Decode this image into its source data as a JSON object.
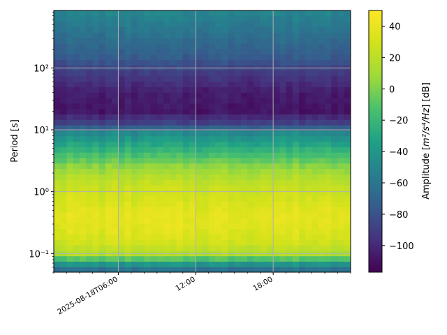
{
  "chart_data": {
    "type": "heatmap",
    "title": "",
    "xlabel": "",
    "ylabel": "Period [s]",
    "colorbar": {
      "label_main": "Amplitude [",
      "label_math": "m²/s⁴/Hz",
      "label_tail": "] [dB]",
      "range": [
        -117,
        50
      ],
      "ticks": [
        40,
        20,
        0,
        -20,
        -40,
        -60,
        -80,
        -100
      ],
      "colormap": "viridis"
    },
    "x_axis": {
      "range_hours": [
        1.0,
        24.0
      ],
      "tick_hours": [
        6,
        12,
        18
      ],
      "tick_labels": [
        "2025-08-18T06:00",
        "12:00",
        "18:00"
      ]
    },
    "y_axis": {
      "scale": "log",
      "range": [
        0.05,
        850
      ],
      "major_ticks": [
        0.1,
        1,
        10,
        100
      ],
      "major_tick_labels": [
        "10⁻¹",
        "10⁰",
        "10¹",
        "10²"
      ]
    },
    "grid": true,
    "spectral_profile": [
      {
        "period": 0.05,
        "db": -70
      },
      {
        "period": 0.06,
        "db": -55
      },
      {
        "period": 0.07,
        "db": -38
      },
      {
        "period": 0.08,
        "db": -15
      },
      {
        "period": 0.1,
        "db": 15
      },
      {
        "period": 0.15,
        "db": 28
      },
      {
        "period": 0.25,
        "db": 36
      },
      {
        "period": 0.4,
        "db": 38
      },
      {
        "period": 0.6,
        "db": 34
      },
      {
        "period": 1.0,
        "db": 28
      },
      {
        "period": 1.5,
        "db": 20
      },
      {
        "period": 2.5,
        "db": 5
      },
      {
        "period": 4.0,
        "db": -15
      },
      {
        "period": 6.0,
        "db": -32
      },
      {
        "period": 9.0,
        "db": -48
      },
      {
        "period": 12.0,
        "db": -85
      },
      {
        "period": 20.0,
        "db": -108
      },
      {
        "period": 40.0,
        "db": -105
      },
      {
        "period": 80.0,
        "db": -92
      },
      {
        "period": 150.0,
        "db": -75
      },
      {
        "period": 300.0,
        "db": -65
      },
      {
        "period": 600.0,
        "db": -55
      },
      {
        "period": 850.0,
        "db": -50
      }
    ]
  }
}
